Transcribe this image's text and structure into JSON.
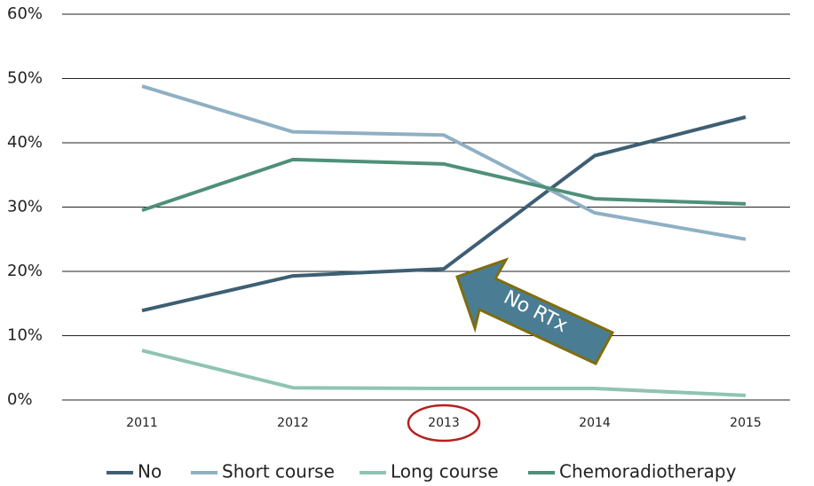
{
  "chart_data": {
    "type": "line",
    "categories": [
      "2011",
      "2012",
      "2013",
      "2014",
      "2015"
    ],
    "series": [
      {
        "name": "No",
        "color": "#3d5f73",
        "values": [
          13.9,
          19.3,
          20.4,
          38,
          44
        ]
      },
      {
        "name": "Short course",
        "color": "#8fb0c4",
        "values": [
          48.8,
          41.7,
          41.2,
          29.1,
          25
        ]
      },
      {
        "name": "Long course",
        "color": "#8fc4b0",
        "values": [
          7.7,
          1.9,
          1.8,
          1.8,
          0.7
        ]
      },
      {
        "name": "Chemoradiotherapy",
        "color": "#4e9078",
        "values": [
          29.5,
          37.4,
          36.7,
          31.3,
          30.5
        ]
      }
    ],
    "ylim": [
      0,
      60
    ],
    "yticks": [
      {
        "value": 0,
        "label": "0%"
      },
      {
        "value": 10,
        "label": "10%"
      },
      {
        "value": 20,
        "label": "20%"
      },
      {
        "value": 30,
        "label": "30%"
      },
      {
        "value": 40,
        "label": "40%"
      },
      {
        "value": 50,
        "label": "50%"
      },
      {
        "value": 60,
        "label": "60%"
      }
    ],
    "grid": true,
    "legend": "bottom",
    "annotation": "No RTx"
  }
}
